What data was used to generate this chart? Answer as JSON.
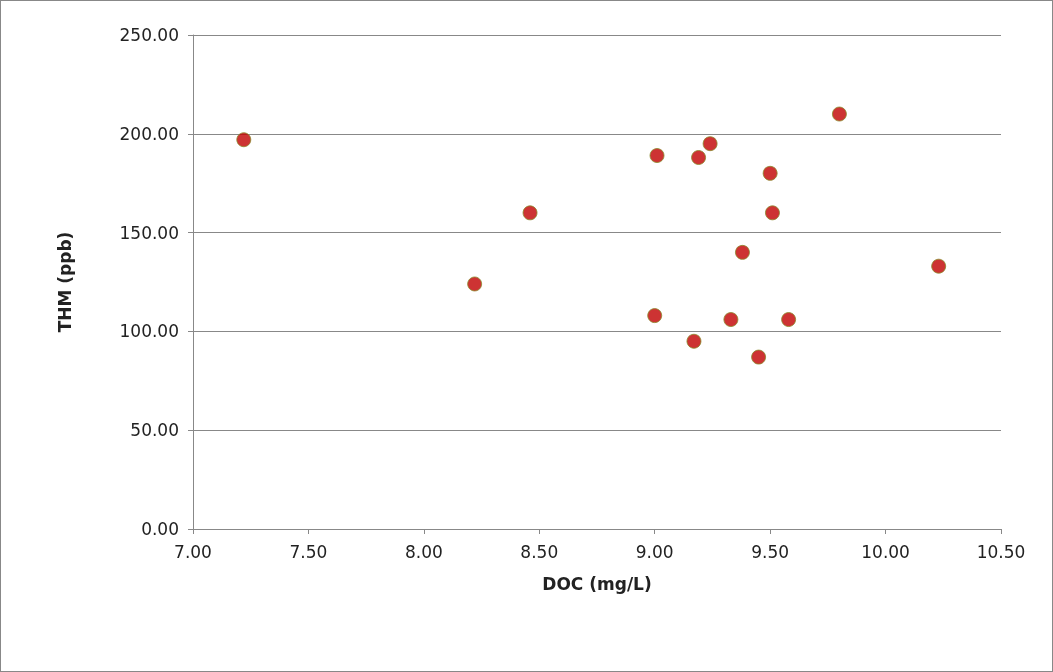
{
  "chart_data": {
    "type": "scatter",
    "xlabel": "DOC (mg/L)",
    "ylabel": "THM (ppb)",
    "x": [
      7.22,
      8.22,
      8.46,
      9.01,
      9.0,
      9.17,
      9.19,
      9.24,
      9.33,
      9.38,
      9.45,
      9.5,
      9.51,
      9.58,
      9.8,
      10.23
    ],
    "series": [
      {
        "color": "#c00000",
        "values": [
          197,
          124,
          160,
          189,
          108,
          95,
          188,
          195,
          106,
          140,
          87,
          180,
          160,
          106,
          210,
          133
        ]
      }
    ],
    "xlim": [
      7,
      10.5
    ],
    "xticks": [
      {
        "value": 7,
        "label": "7.00"
      },
      {
        "value": 7.5,
        "label": "7.50"
      },
      {
        "value": 8,
        "label": "8.00"
      },
      {
        "value": 8.5,
        "label": "8.50"
      },
      {
        "value": 9,
        "label": "9.00"
      },
      {
        "value": 9.5,
        "label": "9.50"
      },
      {
        "value": 10,
        "label": "10.00"
      },
      {
        "value": 10.5,
        "label": "10.50"
      }
    ],
    "ylim": [
      0,
      250
    ],
    "yticks": [
      {
        "value": 0,
        "label": "0.00"
      },
      {
        "value": 50,
        "label": "50.00"
      },
      {
        "value": 100,
        "label": "100.00"
      },
      {
        "value": 150,
        "label": "150.00"
      },
      {
        "value": 200,
        "label": "200.00"
      },
      {
        "value": 250,
        "label": "250.00"
      }
    ],
    "grid": "y",
    "marker": "circle"
  }
}
